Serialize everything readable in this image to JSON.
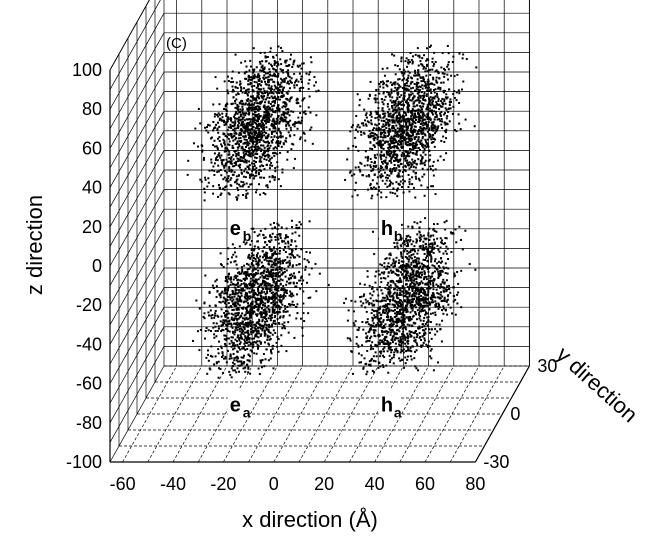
{
  "chart_data": {
    "type": "scatter",
    "panel_label": "(C)",
    "xlabel": "x direction (Å)",
    "ylabel": "y direction",
    "zlabel": "z direction",
    "x_ticks": [
      "-60",
      "-40",
      "-20",
      "0",
      "20",
      "40",
      "60",
      "80"
    ],
    "y_ticks": [
      "30",
      "0",
      "-30"
    ],
    "z_ticks": [
      "100",
      "80",
      "60",
      "40",
      "20",
      "0",
      "-20",
      "-40",
      "-60",
      "-80",
      "-100"
    ],
    "xlim": [
      -65,
      80
    ],
    "ylim": [
      -30,
      30
    ],
    "zlim": [
      -100,
      100
    ],
    "grid": true,
    "clusters": [
      {
        "name": "e",
        "sub": "b",
        "x_range": [
          -40,
          5
        ],
        "z_range": [
          28,
          68
        ],
        "y_range": [
          -25,
          25
        ]
      },
      {
        "name": "h",
        "sub": "b",
        "x_range": [
          20,
          65
        ],
        "z_range": [
          28,
          68
        ],
        "y_range": [
          -25,
          25
        ]
      },
      {
        "name": "e",
        "sub": "a",
        "x_range": [
          -40,
          5
        ],
        "z_range": [
          -62,
          -20
        ],
        "y_range": [
          -25,
          25
        ]
      },
      {
        "name": "h",
        "sub": "a",
        "x_range": [
          20,
          65
        ],
        "z_range": [
          -62,
          -20
        ],
        "y_range": [
          -25,
          25
        ]
      }
    ]
  }
}
